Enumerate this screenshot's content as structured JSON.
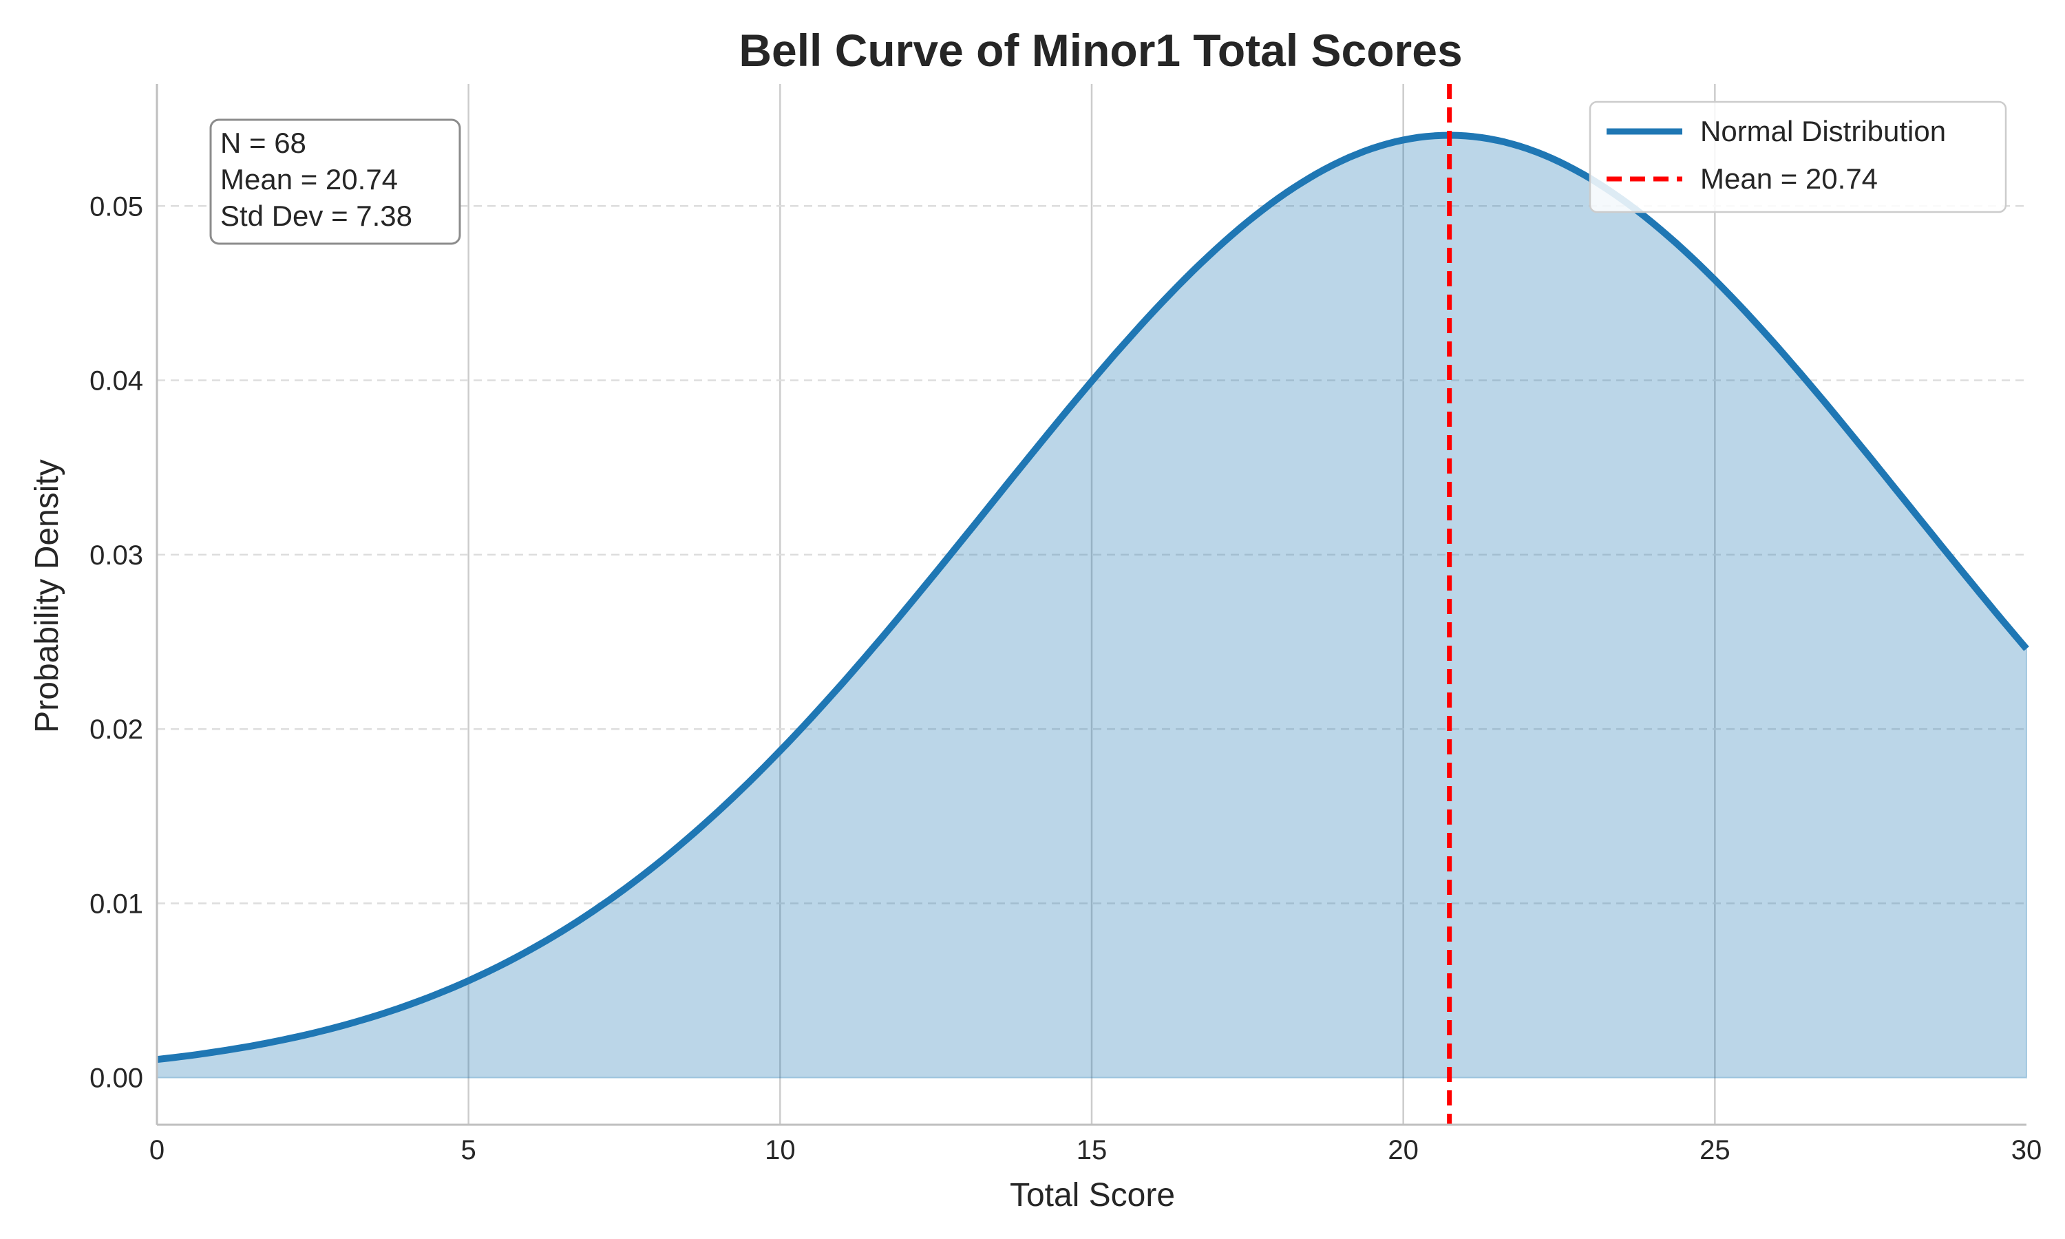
{
  "chart_data": {
    "type": "area",
    "title": "Bell Curve of Minor1 Total Scores",
    "xlabel": "Total Score",
    "ylabel": "Probability Density",
    "xlim": [
      0,
      30
    ],
    "ylim": [
      -0.0027,
      0.057
    ],
    "x_ticks": [
      0,
      5,
      10,
      15,
      20,
      25,
      30
    ],
    "y_ticks": [
      0.0,
      0.01,
      0.02,
      0.03,
      0.04,
      0.05
    ],
    "x_tick_labels": [
      "0",
      "5",
      "10",
      "15",
      "20",
      "25",
      "30"
    ],
    "y_tick_labels": [
      "0.00",
      "0.01",
      "0.02",
      "0.03",
      "0.04",
      "0.05"
    ],
    "grid": true,
    "legend_position": "top-right",
    "series": [
      {
        "name": "Normal Distribution",
        "color": "#1f77b4",
        "fill_color": "#1f77b4",
        "style": "solid",
        "distribution": "normal",
        "mean": 20.74,
        "std": 7.38,
        "x": [
          0,
          2,
          4,
          5,
          6,
          8,
          10,
          12,
          14,
          15,
          16,
          18,
          20,
          20.74,
          22,
          24,
          25,
          26,
          28,
          30
        ],
        "values": [
          0.0011,
          0.0021,
          0.0041,
          0.0054,
          0.0074,
          0.0122,
          0.0189,
          0.0267,
          0.0354,
          0.0399,
          0.0443,
          0.051,
          0.0539,
          0.0541,
          0.0534,
          0.0491,
          0.0459,
          0.042,
          0.0334,
          0.0245
        ]
      }
    ],
    "reference_lines": [
      {
        "name": "Mean = 20.74",
        "x": 20.74,
        "color": "#ff0000",
        "style": "dashed"
      }
    ],
    "stats_box": [
      "N = 68",
      "Mean = 20.74",
      "Std Dev = 7.38"
    ]
  }
}
